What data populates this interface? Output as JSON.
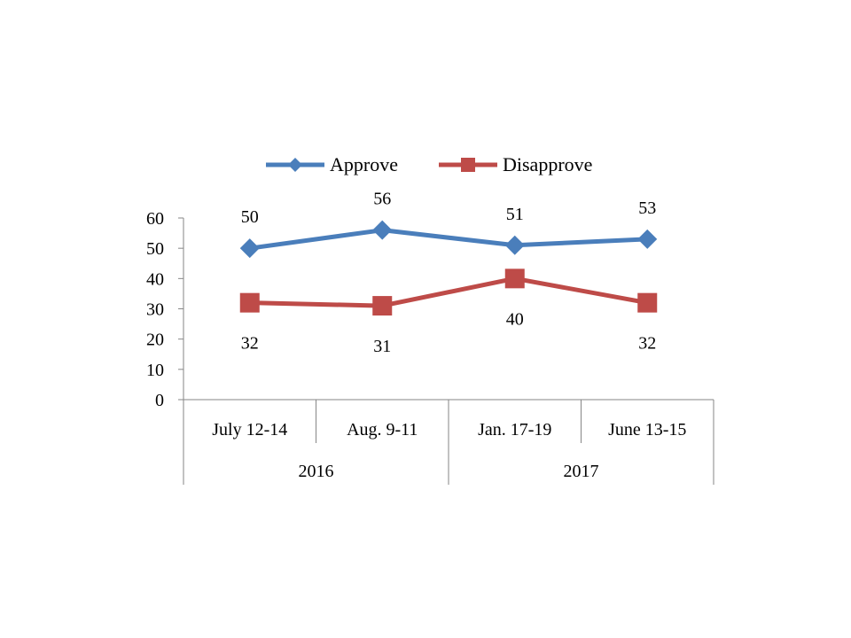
{
  "chart_data": {
    "type": "line",
    "categories": [
      "July 12-14",
      "Aug. 9-11",
      "Jan. 17-19",
      "June 13-15"
    ],
    "category_groups": [
      {
        "label": "2016",
        "span": 2
      },
      {
        "label": "2017",
        "span": 2
      }
    ],
    "series": [
      {
        "name": "Approve",
        "values": [
          50,
          56,
          51,
          53
        ],
        "color": "#4a7ebb",
        "marker": "diamond",
        "label_position": "above"
      },
      {
        "name": "Disapprove",
        "values": [
          32,
          31,
          40,
          32
        ],
        "color": "#be4b48",
        "marker": "square",
        "label_position": "below"
      }
    ],
    "yticks": [
      0,
      10,
      20,
      30,
      40,
      50,
      60
    ],
    "ylim": [
      0,
      60
    ],
    "grid": false,
    "legend": "top-center",
    "title": "",
    "xlabel": "",
    "ylabel": ""
  }
}
